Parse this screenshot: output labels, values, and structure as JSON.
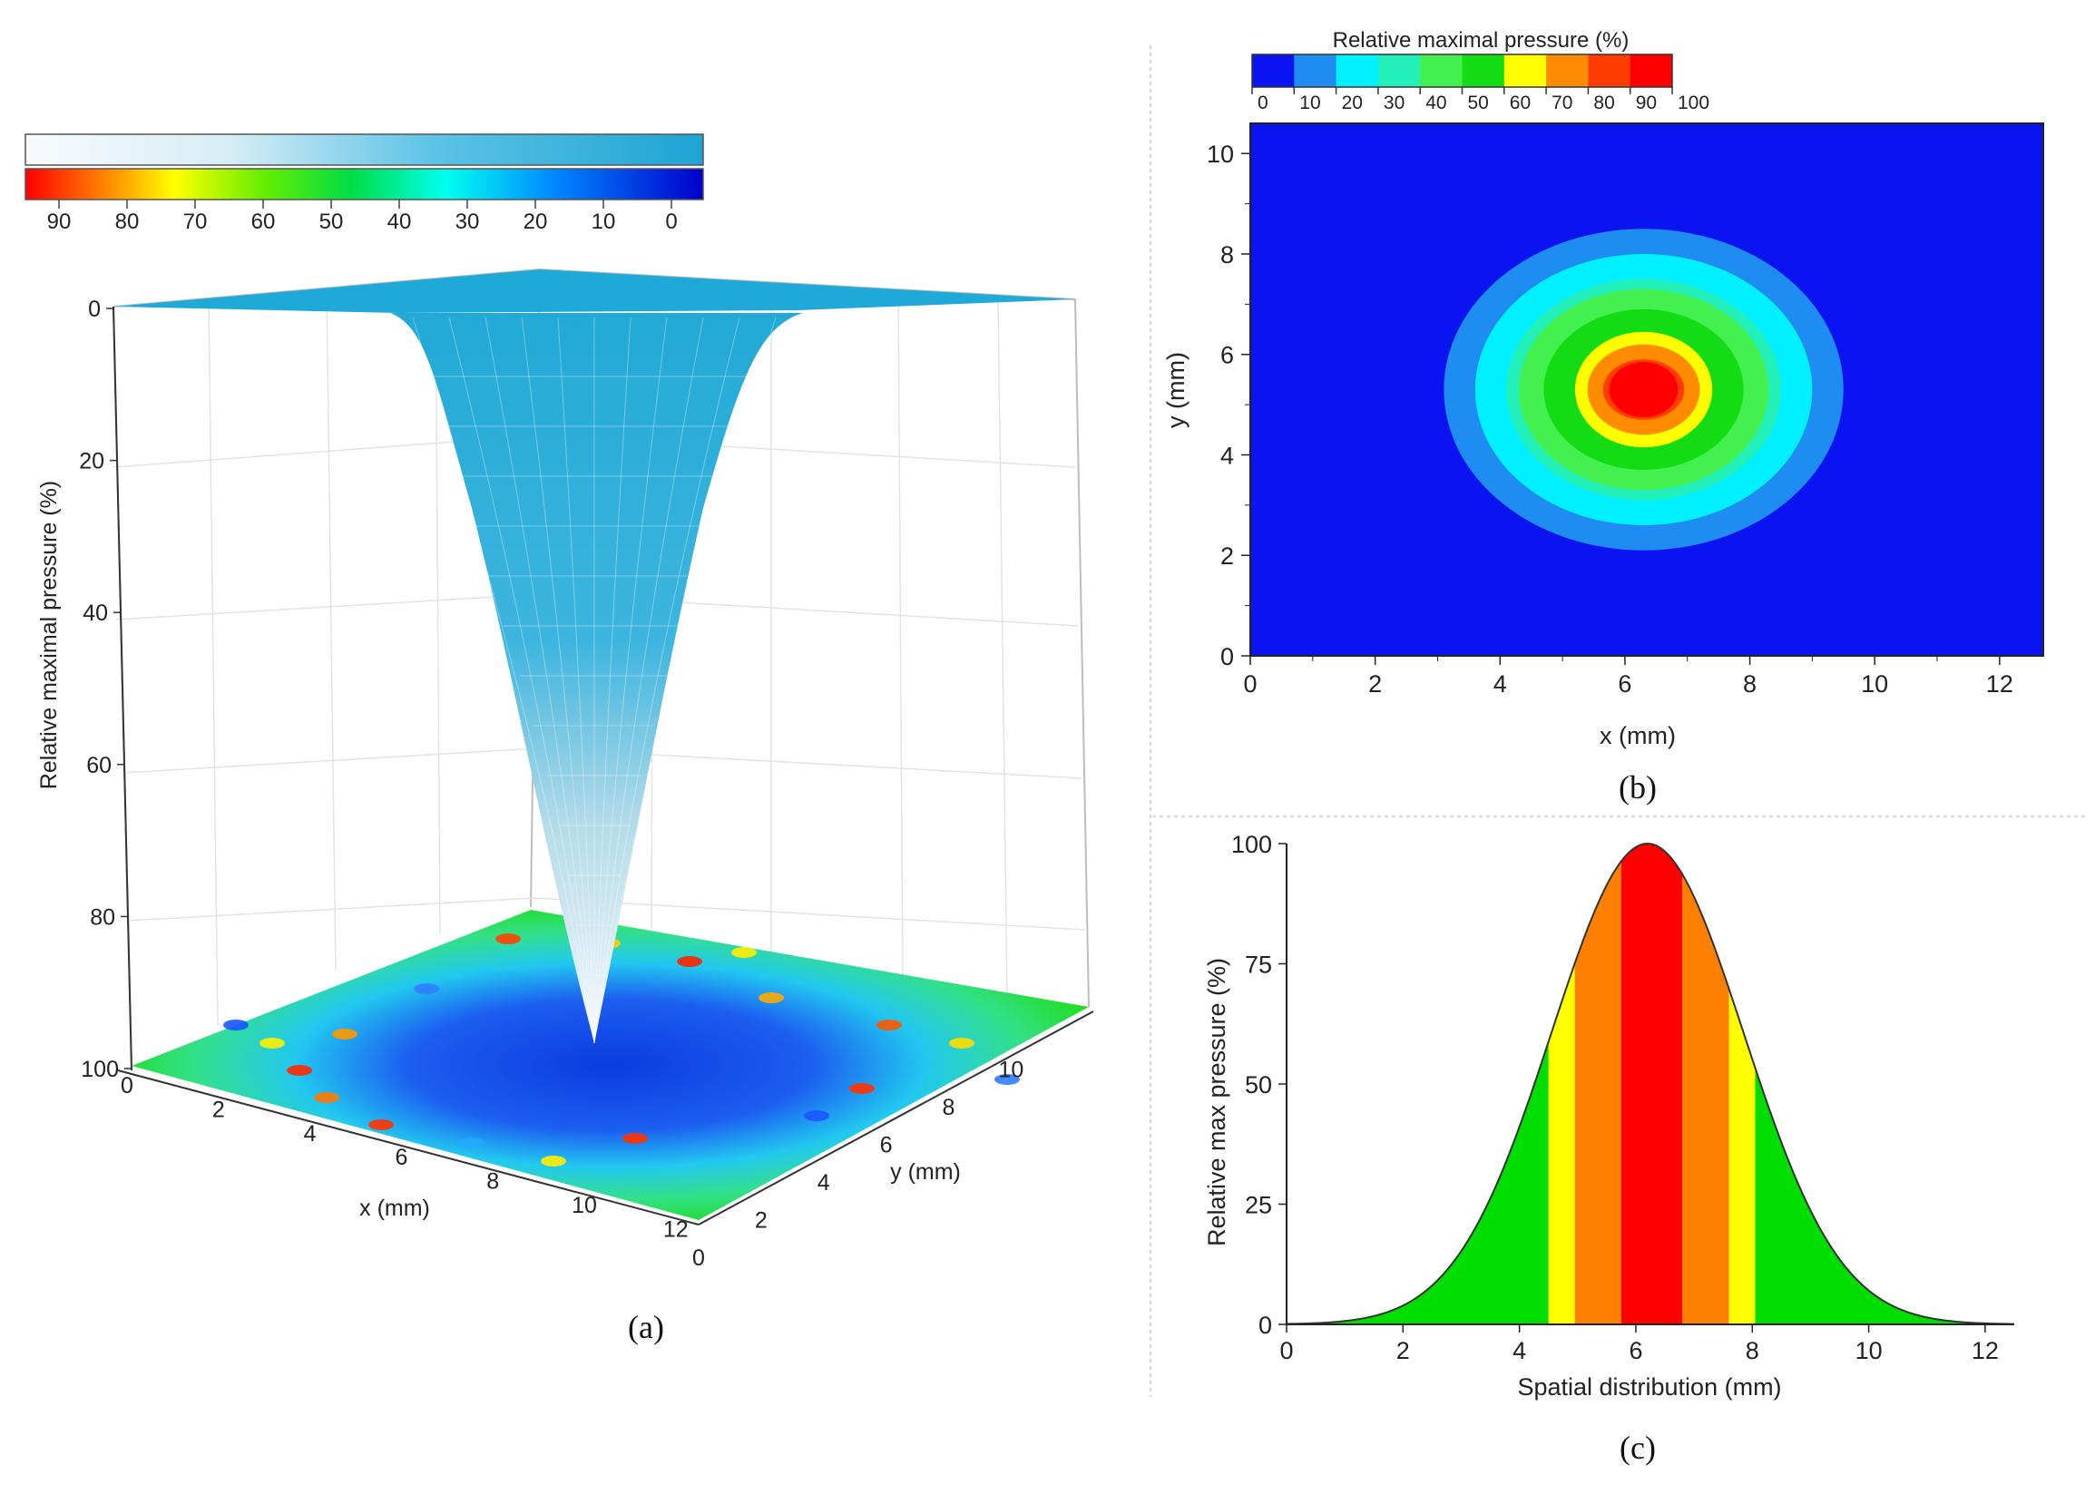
{
  "figure": {
    "panel_labels": {
      "a": "(a)",
      "b": "(b)",
      "c": "(c)"
    }
  },
  "chart_data": [
    {
      "id": "a",
      "type": "surface3d",
      "ylabel": "Relative maximal pressure (%)",
      "xlabel": "x (mm)",
      "zlabel": "y (mm)",
      "z_ticks": [
        "0",
        "20",
        "40",
        "60",
        "80",
        "100"
      ],
      "x_ticks": [
        "0",
        "2",
        "4",
        "6",
        "8",
        "10",
        "12"
      ],
      "y_ticks": [
        "0",
        "2",
        "4",
        "6",
        "8",
        "10"
      ],
      "colorbar_ticks": [
        "90",
        "80",
        "70",
        "60",
        "50",
        "40",
        "30",
        "20",
        "10",
        "0"
      ],
      "peak_pressure_percent": 100,
      "peak_x_mm": 6.2,
      "peak_y_mm": 5.2,
      "colors": {
        "surface": "#1ea9d8",
        "surface_light": "#eef4f7"
      }
    },
    {
      "id": "b",
      "type": "heatmap",
      "title": "Relative maximal pressure (%)",
      "xlabel": "x (mm)",
      "ylabel": "y (mm)",
      "x_ticks": [
        "0",
        "2",
        "4",
        "6",
        "8",
        "10",
        "12"
      ],
      "y_ticks": [
        "0",
        "2",
        "4",
        "6",
        "8",
        "10"
      ],
      "xlim": [
        0,
        12.7
      ],
      "ylim": [
        0,
        10.6
      ],
      "colorbar_ticks": [
        "0",
        "10",
        "20",
        "30",
        "40",
        "50",
        "60",
        "70",
        "80",
        "90",
        "100"
      ],
      "levels": [
        {
          "from": 0,
          "to": 10,
          "color": "#0a14f0",
          "rx_mm": 6.5,
          "ry_mm": 5.5
        },
        {
          "from": 10,
          "to": 20,
          "color": "#1e8cf0",
          "rx_mm": 3.2,
          "ry_mm": 3.2
        },
        {
          "from": 20,
          "to": 30,
          "color": "#00f0ff",
          "rx_mm": 2.7,
          "ry_mm": 2.7
        },
        {
          "from": 30,
          "to": 40,
          "color": "#22f0b8",
          "rx_mm": 2.2,
          "ry_mm": 2.2
        },
        {
          "from": 40,
          "to": 50,
          "color": "#44f050",
          "rx_mm": 2.0,
          "ry_mm": 2.0
        },
        {
          "from": 50,
          "to": 60,
          "color": "#14dc14",
          "rx_mm": 1.6,
          "ry_mm": 1.6
        },
        {
          "from": 60,
          "to": 70,
          "color": "#ffff00",
          "rx_mm": 1.1,
          "ry_mm": 1.15
        },
        {
          "from": 70,
          "to": 80,
          "color": "#ff8c00",
          "rx_mm": 0.9,
          "ry_mm": 0.9
        },
        {
          "from": 80,
          "to": 90,
          "color": "#ff3c00",
          "rx_mm": 0.65,
          "ry_mm": 0.6
        },
        {
          "from": 90,
          "to": 100,
          "color": "#ff0000",
          "rx_mm": 0.55,
          "ry_mm": 0.55
        }
      ],
      "center_mm": [
        6.3,
        5.3
      ]
    },
    {
      "id": "c",
      "type": "area",
      "xlabel": "Spatial distribution (mm)",
      "ylabel": "Relative max pressure (%)",
      "x_ticks": [
        "0",
        "2",
        "4",
        "6",
        "8",
        "10",
        "12"
      ],
      "y_ticks": [
        "0",
        "25",
        "50",
        "75",
        "100"
      ],
      "xlim": [
        0,
        12.5
      ],
      "ylim": [
        0,
        100
      ],
      "mean_mm": 6.2,
      "sigma_mm": 1.65,
      "peak": 100,
      "bands": [
        {
          "from_mm": 0,
          "to_mm": 4.5,
          "color": "#00dd00"
        },
        {
          "from_mm": 4.5,
          "to_mm": 4.95,
          "color": "#ffff00"
        },
        {
          "from_mm": 4.95,
          "to_mm": 5.75,
          "color": "#ff8000"
        },
        {
          "from_mm": 5.75,
          "to_mm": 6.8,
          "color": "#ff0000"
        },
        {
          "from_mm": 6.8,
          "to_mm": 7.6,
          "color": "#ff8000"
        },
        {
          "from_mm": 7.6,
          "to_mm": 8.05,
          "color": "#ffff00"
        },
        {
          "from_mm": 8.05,
          "to_mm": 12.5,
          "color": "#00dd00"
        }
      ]
    }
  ]
}
